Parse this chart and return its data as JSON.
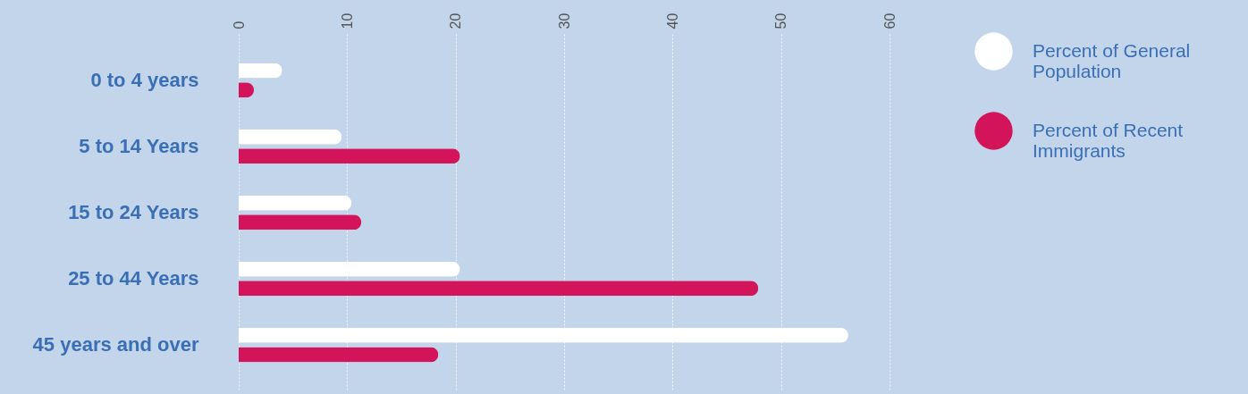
{
  "chart_data": {
    "type": "bar",
    "orientation": "horizontal",
    "categories": [
      "0 to 4  years",
      "5 to 14 Years",
      "15 to 24 Years",
      "25 to 44 Years",
      "45 years and over"
    ],
    "series": [
      {
        "name": "Percent  of General Population",
        "color": "#ffffff",
        "values": [
          4.0,
          9.5,
          10.4,
          20.4,
          56.2
        ]
      },
      {
        "name": "Percent of Recent Immigrants",
        "color": "#d4145a",
        "values": [
          1.4,
          20.4,
          11.3,
          47.9,
          18.4
        ]
      }
    ],
    "xlim": [
      0,
      60
    ],
    "xticks": [
      0,
      10,
      20,
      30,
      40,
      50,
      60
    ],
    "grid": "x",
    "legend": "top right"
  }
}
